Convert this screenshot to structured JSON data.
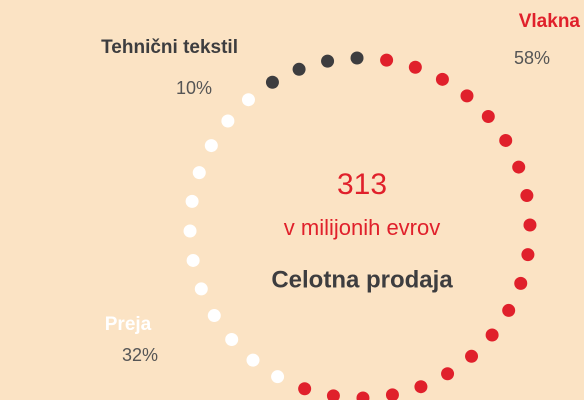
{
  "chart_data": {
    "type": "pie",
    "style": "dotted-ring",
    "title": "Celotna prodaja",
    "total": 313,
    "subtitle": "v milijonih evrov",
    "categories": [
      "Tehnični tekstil",
      "Vlakna",
      "Preja"
    ],
    "values": [
      10,
      58,
      32
    ],
    "value_labels": [
      "10%",
      "58%",
      "32%"
    ],
    "colors": [
      "#3d3d3f",
      "#e0202b",
      "#ffffff"
    ],
    "total_color": "#e0202b"
  }
}
